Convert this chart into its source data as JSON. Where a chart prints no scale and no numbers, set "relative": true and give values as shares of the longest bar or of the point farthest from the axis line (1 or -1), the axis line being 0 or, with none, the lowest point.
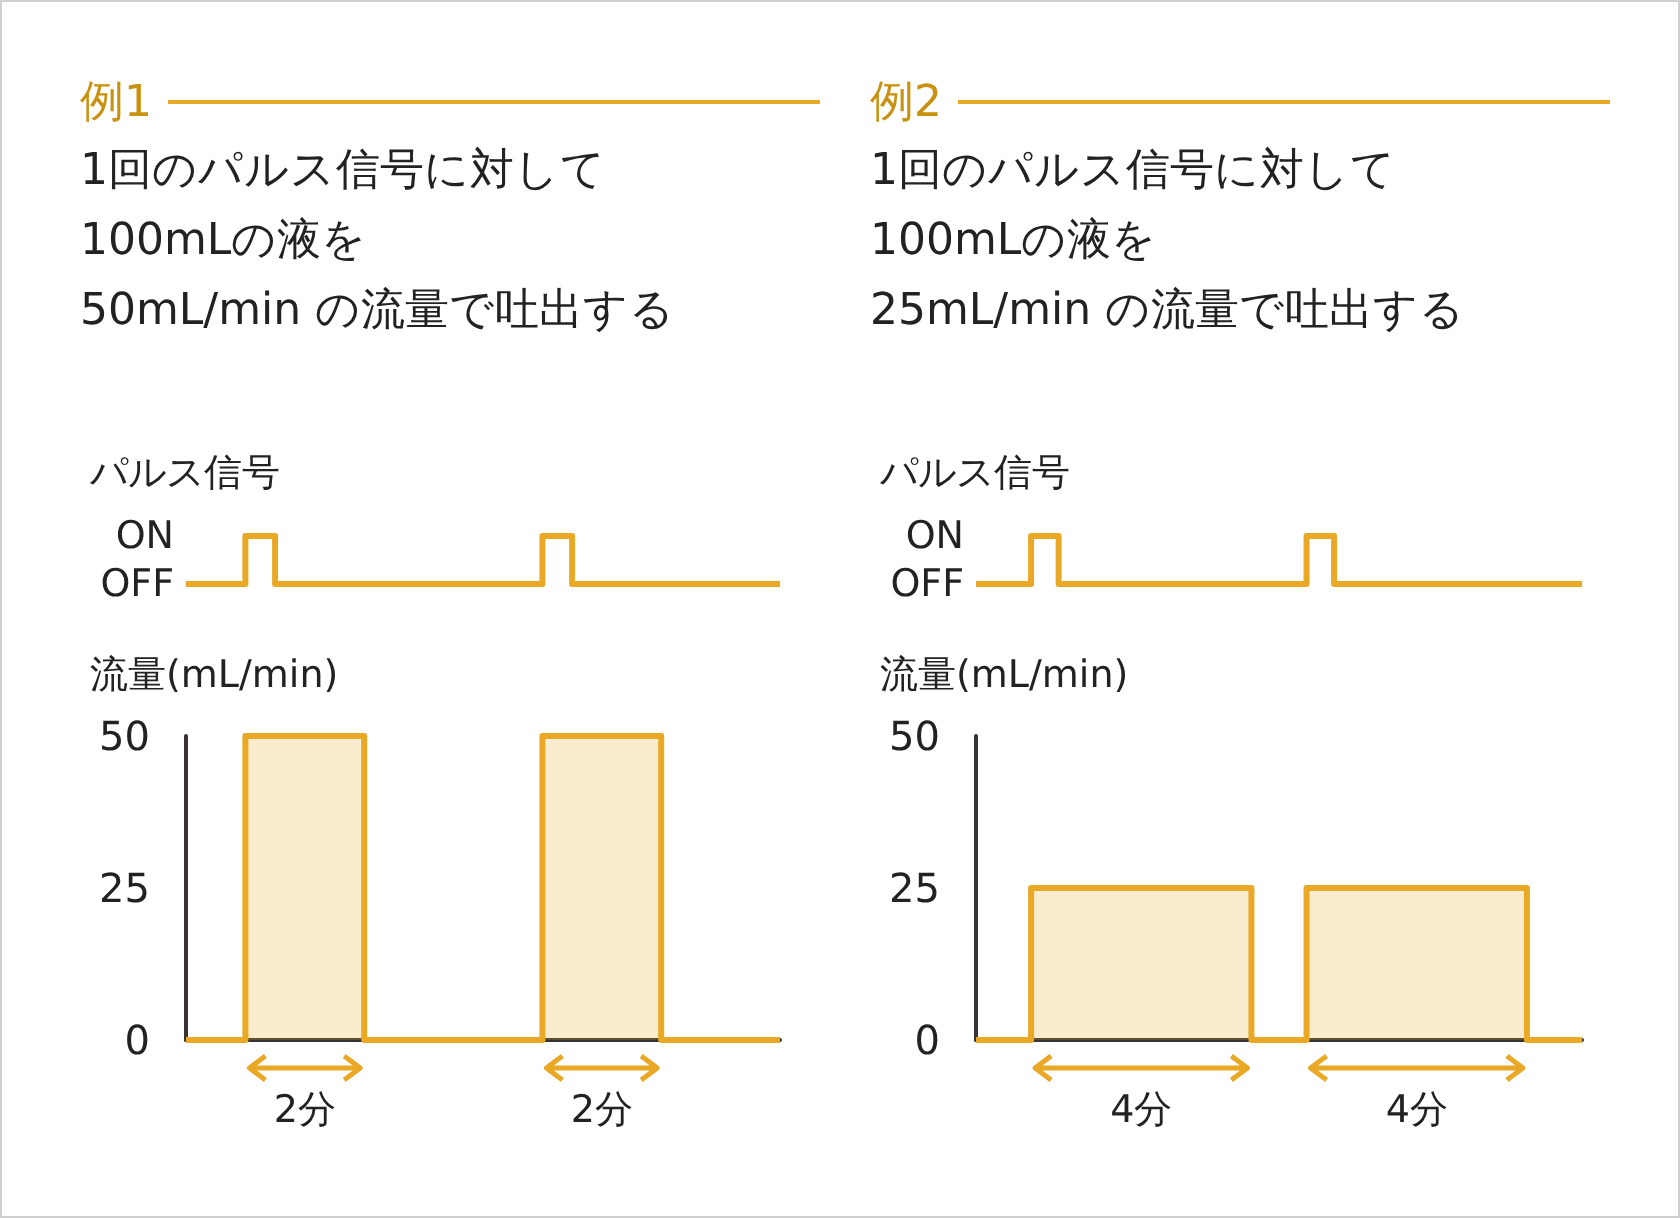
{
  "chart_data": [
    {
      "type": "step",
      "title": "例1",
      "subtitle": "1回のパルス信号に対して\n100mLの液を\n50mL/min の流量で吐出する",
      "ylabel": "パルス信号",
      "categories": [
        null,
        null,
        null,
        null,
        null,
        null,
        null,
        null,
        null,
        null,
        null,
        null,
        null,
        null,
        null,
        null,
        null,
        null,
        null,
        null,
        null
      ],
      "values": [
        0,
        0,
        1,
        0,
        0,
        0,
        0,
        0,
        0,
        0,
        0,
        0,
        1,
        0,
        0,
        0,
        0,
        0,
        0,
        0,
        0
      ],
      "color": "#e9a825",
      "relative": true,
      "annotations": [
        "ON",
        "OFF"
      ]
    },
    {
      "type": "area",
      "ylabel": "流量(mL/min)",
      "categories": [
        null,
        null,
        null,
        null,
        null,
        null,
        null,
        null,
        null,
        null,
        null,
        null,
        null,
        null,
        null,
        null,
        null,
        null,
        null,
        null,
        null
      ],
      "values": [
        0,
        0,
        50,
        50,
        50,
        50,
        0,
        0,
        0,
        0,
        0,
        0,
        50,
        50,
        50,
        50,
        0,
        0,
        0,
        0,
        0
      ],
      "color": "#e9a825",
      "ylim": [
        0,
        50
      ],
      "yticks": [
        0,
        25,
        50
      ],
      "tick_labels": "y",
      "annotations": [
        "2分",
        "2分"
      ]
    },
    {
      "type": "step",
      "title": "例2",
      "subtitle": "1回のパルス信号に対して\n100mLの液を\n25mL/min の流量で吐出する",
      "ylabel": "パルス信号",
      "categories": [
        null,
        null,
        null,
        null,
        null,
        null,
        null,
        null,
        null,
        null,
        null,
        null,
        null,
        null,
        null,
        null,
        null,
        null,
        null,
        null,
        null,
        null,
        null
      ],
      "values": [
        0,
        0,
        1,
        0,
        0,
        0,
        0,
        0,
        0,
        0,
        0,
        0,
        1,
        0,
        0,
        0,
        0,
        0,
        0,
        0,
        0,
        0,
        0
      ],
      "color": "#e9a825",
      "relative": true,
      "annotations": [
        "ON",
        "OFF"
      ]
    },
    {
      "type": "area",
      "ylabel": "流量(mL/min)",
      "categories": [
        null,
        null,
        null,
        null,
        null,
        null,
        null,
        null,
        null,
        null,
        null,
        null,
        null,
        null,
        null,
        null,
        null,
        null,
        null,
        null,
        null,
        null,
        null
      ],
      "values": [
        0,
        0,
        25,
        25,
        25,
        25,
        25,
        25,
        25,
        25,
        0,
        0,
        25,
        25,
        25,
        25,
        25,
        25,
        25,
        25,
        0,
        0,
        0
      ],
      "color": "#e9a825",
      "ylim": [
        0,
        50
      ],
      "yticks": [
        0,
        25,
        50
      ],
      "tick_labels": "y",
      "annotations": [
        "4分",
        "4分"
      ]
    }
  ]
}
